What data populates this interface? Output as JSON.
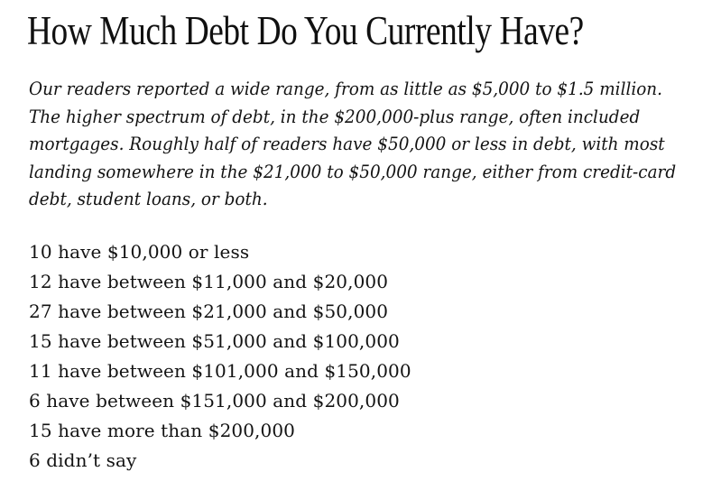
{
  "article": {
    "title": "How Much Debt Do You Currently Have?",
    "intro_lines": [
      "Our readers reported a wide range, from as little as $5,000 to $1.5 million.",
      "The higher spectrum of debt, in the $200,000-plus range, often included",
      "mortgages. Roughly half of readers have $50,000 or less in debt, with most",
      "landing somewhere in the $21,000 to $50,000 range, either from credit-card",
      "debt, student loans, or both."
    ],
    "stats": [
      "10 have $10,000 or less",
      "12 have between $11,000 and $20,000",
      "27 have between $21,000 and $50,000",
      "15 have between $51,000 and $100,000",
      "11 have between $101,000 and $150,000",
      "6 have between $151,000 and $200,000",
      "15 have more than $200,000",
      "6 didn’t say"
    ],
    "colors": {
      "text": "#131313",
      "background": "#ffffff"
    }
  }
}
